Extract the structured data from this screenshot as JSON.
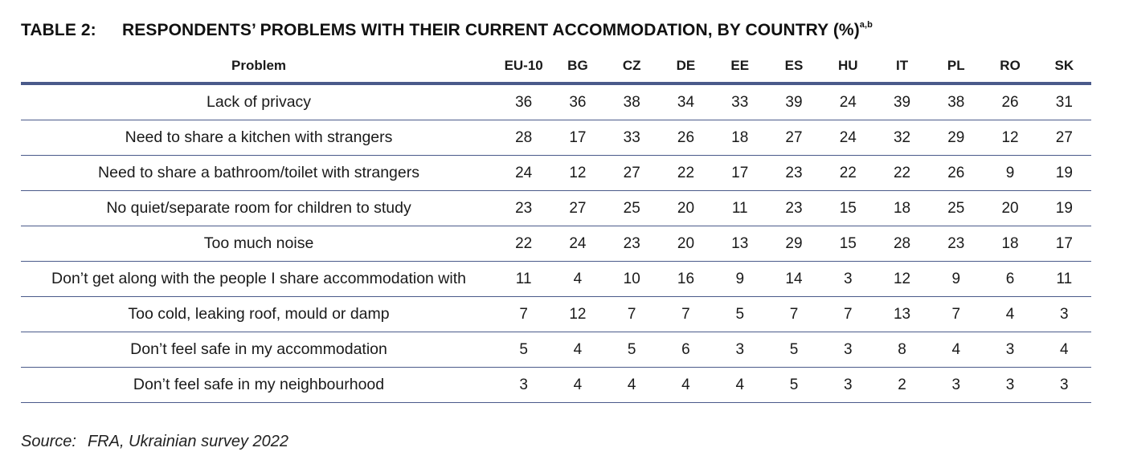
{
  "table": {
    "label": "TABLE 2:",
    "title": "RESPONDENTS’ PROBLEMS WITH THEIR CURRENT ACCOMMODATION, BY COUNTRY (%)",
    "title_superscript": "a,b",
    "headers": [
      "Problem",
      "EU-10",
      "BG",
      "CZ",
      "DE",
      "EE",
      "ES",
      "HU",
      "IT",
      "PL",
      "RO",
      "SK"
    ],
    "rows": [
      {
        "problem": "Lack of privacy",
        "values": [
          "36",
          "36",
          "38",
          "34",
          "33",
          "39",
          "24",
          "39",
          "38",
          "26",
          "31"
        ]
      },
      {
        "problem": "Need to share a kitchen with strangers",
        "values": [
          "28",
          "17",
          "33",
          "26",
          "18",
          "27",
          "24",
          "32",
          "29",
          "12",
          "27"
        ]
      },
      {
        "problem": "Need to share a bathroom/toilet with strangers",
        "values": [
          "24",
          "12",
          "27",
          "22",
          "17",
          "23",
          "22",
          "22",
          "26",
          "9",
          "19"
        ]
      },
      {
        "problem": "No quiet/separate room for children to study",
        "values": [
          "23",
          "27",
          "25",
          "20",
          "11",
          "23",
          "15",
          "18",
          "25",
          "20",
          "19"
        ]
      },
      {
        "problem": "Too much noise",
        "values": [
          "22",
          "24",
          "23",
          "20",
          "13",
          "29",
          "15",
          "28",
          "23",
          "18",
          "17"
        ]
      },
      {
        "problem": "Don’t get along with the people I share accommodation with",
        "values": [
          "11",
          "4",
          "10",
          "16",
          "9",
          "14",
          "3",
          "12",
          "9",
          "6",
          "11"
        ]
      },
      {
        "problem": "Too cold, leaking roof, mould or damp",
        "values": [
          "7",
          "12",
          "7",
          "7",
          "5",
          "7",
          "7",
          "13",
          "7",
          "4",
          "3"
        ]
      },
      {
        "problem": "Don’t feel safe in my accommodation",
        "values": [
          "5",
          "4",
          "5",
          "6",
          "3",
          "5",
          "3",
          "8",
          "4",
          "3",
          "4"
        ]
      },
      {
        "problem": "Don’t feel safe in my neighbourhood",
        "values": [
          "3",
          "4",
          "4",
          "4",
          "4",
          "5",
          "3",
          "2",
          "3",
          "3",
          "3"
        ]
      }
    ]
  },
  "source": {
    "label": "Source:",
    "text": "FRA, Ukrainian survey 2022"
  }
}
